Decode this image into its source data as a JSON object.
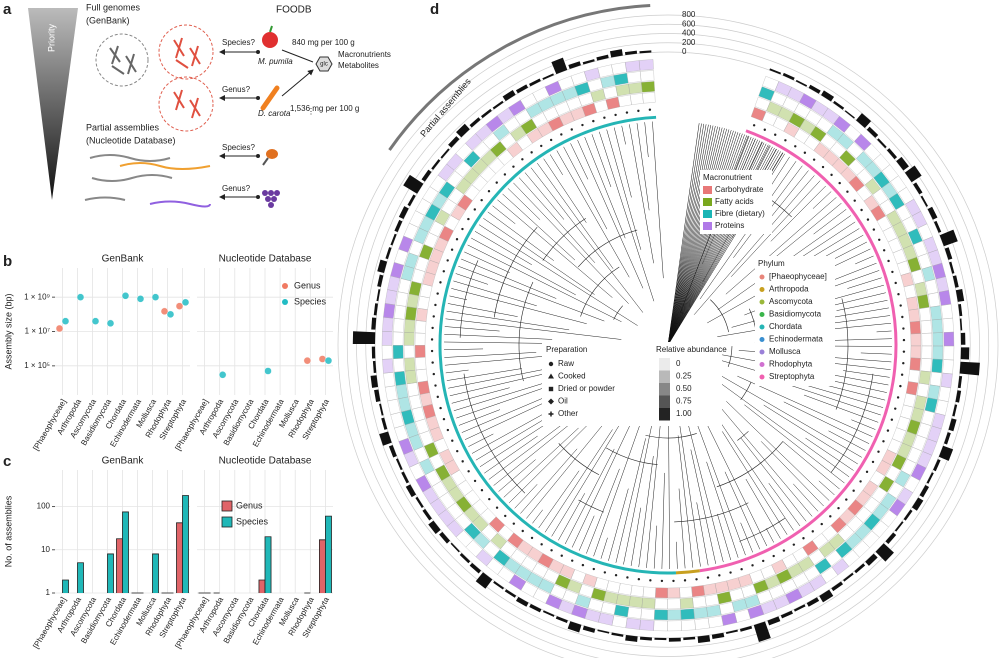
{
  "panel_labels": [
    "a",
    "b",
    "c",
    "d"
  ],
  "diagram": {
    "priority": "Priority",
    "full_genomes": [
      "Full genomes",
      "(GenBank)"
    ],
    "foodb": "FOODB",
    "query_species": "Species?",
    "species_example": "M. pumila",
    "species_amount": "840 mg per 100 g",
    "glc_label": "glc",
    "foodb_content": [
      "Macronutrients",
      "Metabolites"
    ],
    "query_genus": "Genus?",
    "genus_example": "D. carota",
    "genus_amount": "1,536 mg per 100 g",
    "more": "⋮",
    "partial": [
      "Partial assemblies",
      "(Nucleotide Database)"
    ],
    "partial_species": "Species?",
    "partial_genus": "Genus?"
  },
  "chart_data": [
    {
      "type": "scatter",
      "ylabel": "Assembly size (bp)",
      "log_y": true,
      "ylim": [
        2000,
        50000000000
      ],
      "yticks": [
        {
          "value": 100000,
          "label": "1 × 10⁵"
        },
        {
          "value": 10000000,
          "label": "1 × 10⁷"
        },
        {
          "value": 1000000000,
          "label": "1 × 10⁹"
        }
      ],
      "grid": true,
      "legend": "upper right",
      "categories": [
        "[Phaeophyceae]",
        "Arthropoda",
        "Ascomycota",
        "Basidiomycota",
        "Chordata",
        "Echinodermata",
        "Mollusca",
        "Rhodophyta",
        "Streptophyta"
      ],
      "series": [
        {
          "name": "Genus",
          "color": "#f07a62"
        },
        {
          "name": "Species",
          "color": "#22bcc4"
        }
      ],
      "facets": [
        {
          "title": "GenBank",
          "series": [
            {
              "values": [
                15000000,
                null,
                null,
                null,
                null,
                null,
                null,
                150000000,
                300000000
              ]
            },
            {
              "values": [
                40000000,
                1000000000,
                40000000,
                30000000,
                1200000000,
                800000000,
                1000000000,
                100000000,
                500000000
              ]
            }
          ]
        },
        {
          "title": "Nucleotide Database",
          "series": [
            {
              "values": [
                null,
                null,
                null,
                null,
                null,
                null,
                null,
                200000,
                250000
              ]
            },
            {
              "values": [
                null,
                30000,
                null,
                null,
                50000,
                null,
                null,
                null,
                200000
              ]
            }
          ]
        }
      ]
    },
    {
      "type": "bar",
      "ylabel": "No. of assemblies",
      "log_y": true,
      "ylim": [
        1,
        700
      ],
      "yticks": [
        1,
        10,
        100
      ],
      "grid": true,
      "legend": "upper left",
      "categories": [
        "[Phaeophyceae]",
        "Arthropoda",
        "Ascomycota",
        "Basidiomycota",
        "Chordata",
        "Echinodermata",
        "Mollusca",
        "Rhodophyta",
        "Streptophyta"
      ],
      "series": [
        {
          "name": "Genus",
          "color": "#e06468"
        },
        {
          "name": "Species",
          "color": "#20b8b8"
        }
      ],
      "facets": [
        {
          "title": "GenBank",
          "series": [
            {
              "values": [
                null,
                null,
                null,
                null,
                18,
                1,
                null,
                1,
                42
              ]
            },
            {
              "values": [
                2,
                5,
                null,
                8,
                75,
                1,
                8,
                1,
                180
              ]
            }
          ]
        },
        {
          "title": "Nucleotide Database",
          "series": [
            {
              "values": [
                1,
                1,
                null,
                null,
                2,
                null,
                null,
                1,
                17
              ]
            },
            {
              "values": [
                1,
                null,
                null,
                null,
                20,
                null,
                null,
                null,
                60
              ]
            }
          ]
        }
      ]
    },
    {
      "type": "polar-bar",
      "annotation": "Partial assemblies",
      "color": "#111111",
      "rlim": [
        0,
        800
      ],
      "rticks": [
        0,
        200,
        400,
        600,
        800
      ],
      "values": [
        40,
        60,
        35,
        80,
        120,
        55,
        30,
        200,
        90,
        45,
        70,
        150,
        260,
        80,
        40,
        110,
        60,
        320,
        90,
        50,
        75,
        140,
        60,
        35,
        95,
        180,
        420,
        60,
        80,
        50,
        110,
        70,
        230,
        65,
        45,
        90,
        130,
        55,
        40,
        85,
        300,
        120,
        60,
        45,
        75,
        160,
        90,
        50,
        70,
        110,
        380,
        60,
        40,
        95,
        140,
        55,
        80,
        45,
        65,
        120,
        50,
        35,
        90,
        170,
        60,
        40,
        75,
        100,
        55,
        45,
        250,
        80,
        60,
        35,
        90,
        140,
        70,
        50,
        110,
        60,
        45,
        85,
        200,
        65,
        40,
        95,
        130,
        55,
        70,
        480,
        90,
        60,
        40,
        80,
        150,
        55,
        45,
        75,
        110,
        60,
        350,
        85,
        50,
        40,
        95,
        160,
        70,
        55,
        45,
        120,
        80,
        60,
        40,
        280,
        90,
        50,
        75,
        140,
        65,
        45
      ],
      "macronutrient": {
        "title": "Macronutrient",
        "items": [
          {
            "name": "Carbohydrate",
            "color": "#e87878"
          },
          {
            "name": "Fatty acids",
            "color": "#7aa81e"
          },
          {
            "name": "Fibre (dietary)",
            "color": "#1ab5b5"
          },
          {
            "name": "Proteins",
            "color": "#b07ae8"
          }
        ]
      },
      "phylum": {
        "title": "Phylum",
        "items": [
          {
            "name": "[Phaeophyceae]",
            "color": "#e8857a"
          },
          {
            "name": "Arthropoda",
            "color": "#c8a020"
          },
          {
            "name": "Ascomycota",
            "color": "#9ab83a"
          },
          {
            "name": "Basidiomycota",
            "color": "#3ab54a"
          },
          {
            "name": "Chordata",
            "color": "#25b5b5"
          },
          {
            "name": "Echinodermata",
            "color": "#3a8fd0"
          },
          {
            "name": "Mollusca",
            "color": "#9a80d8"
          },
          {
            "name": "Rhodophyta",
            "color": "#d070d0"
          },
          {
            "name": "Streptophyta",
            "color": "#f060b0"
          }
        ]
      },
      "preparation": {
        "title": "Preparation",
        "items": [
          {
            "name": "Raw",
            "marker": "circle"
          },
          {
            "name": "Cooked",
            "marker": "triangle"
          },
          {
            "name": "Dried or powder",
            "marker": "square"
          },
          {
            "name": "Oil",
            "marker": "diamond"
          },
          {
            "name": "Other",
            "marker": "cross"
          }
        ]
      },
      "abundance": {
        "title": "Relative abundance",
        "ticks": [
          0,
          0.25,
          {
            "value": 0.5,
            "label": "0.50"
          },
          0.75,
          {
            "value": 1,
            "label": "1.00"
          }
        ]
      }
    }
  ]
}
